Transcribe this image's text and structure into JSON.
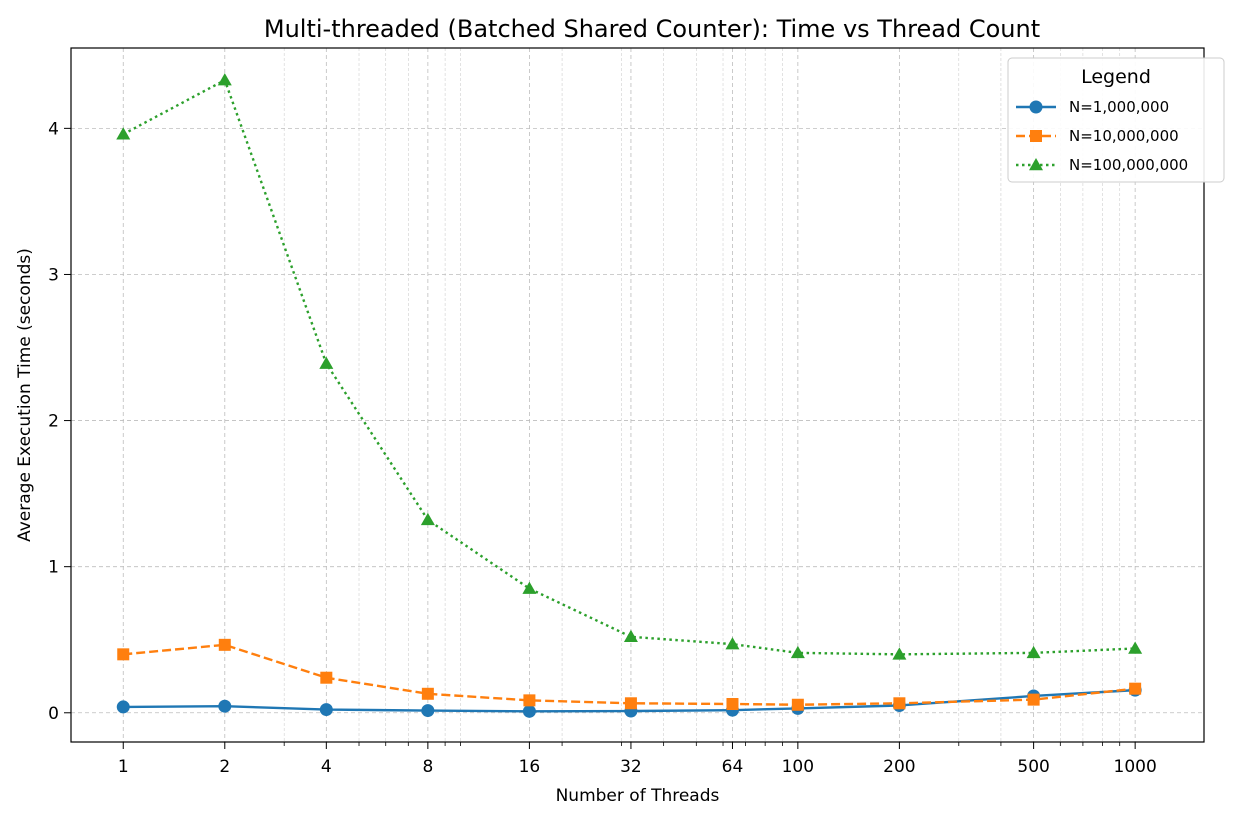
{
  "chart_data": {
    "type": "line",
    "title": "Multi-threaded (Batched Shared Counter): Time vs Thread Count",
    "xlabel": "Number of Threads",
    "ylabel": "Average Execution Time (seconds)",
    "x_scale": "log",
    "x": [
      1,
      2,
      4,
      8,
      16,
      32,
      64,
      100,
      200,
      500,
      1000
    ],
    "x_tick_labels": [
      "1",
      "2",
      "4",
      "8",
      "16",
      "32",
      "64",
      "100",
      "200",
      "500",
      "1000"
    ],
    "y_ticks": [
      0,
      1,
      2,
      3,
      4
    ],
    "y_tick_labels": [
      "0",
      "1",
      "2",
      "3",
      "4"
    ],
    "xlim": [
      0.7,
      1600
    ],
    "ylim": [
      -0.2,
      4.55
    ],
    "grid": true,
    "legend": {
      "title": "Legend",
      "placement": "top-right"
    },
    "series": [
      {
        "name": "N=1,000,000",
        "color": "#1f77b4",
        "marker": "circle",
        "line_style": "solid",
        "values": [
          0.04,
          0.045,
          0.022,
          0.015,
          0.01,
          0.012,
          0.018,
          0.03,
          0.05,
          0.115,
          0.155
        ]
      },
      {
        "name": "N=10,000,000",
        "color": "#ff7f0e",
        "marker": "square",
        "line_style": "dashed",
        "values": [
          0.4,
          0.465,
          0.24,
          0.13,
          0.085,
          0.065,
          0.06,
          0.055,
          0.065,
          0.09,
          0.165
        ]
      },
      {
        "name": "N=100,000,000",
        "color": "#2ca02c",
        "marker": "triangle",
        "line_style": "dotted",
        "values": [
          3.96,
          4.33,
          2.39,
          1.32,
          0.85,
          0.52,
          0.47,
          0.41,
          0.4,
          0.41,
          0.44
        ]
      }
    ]
  }
}
